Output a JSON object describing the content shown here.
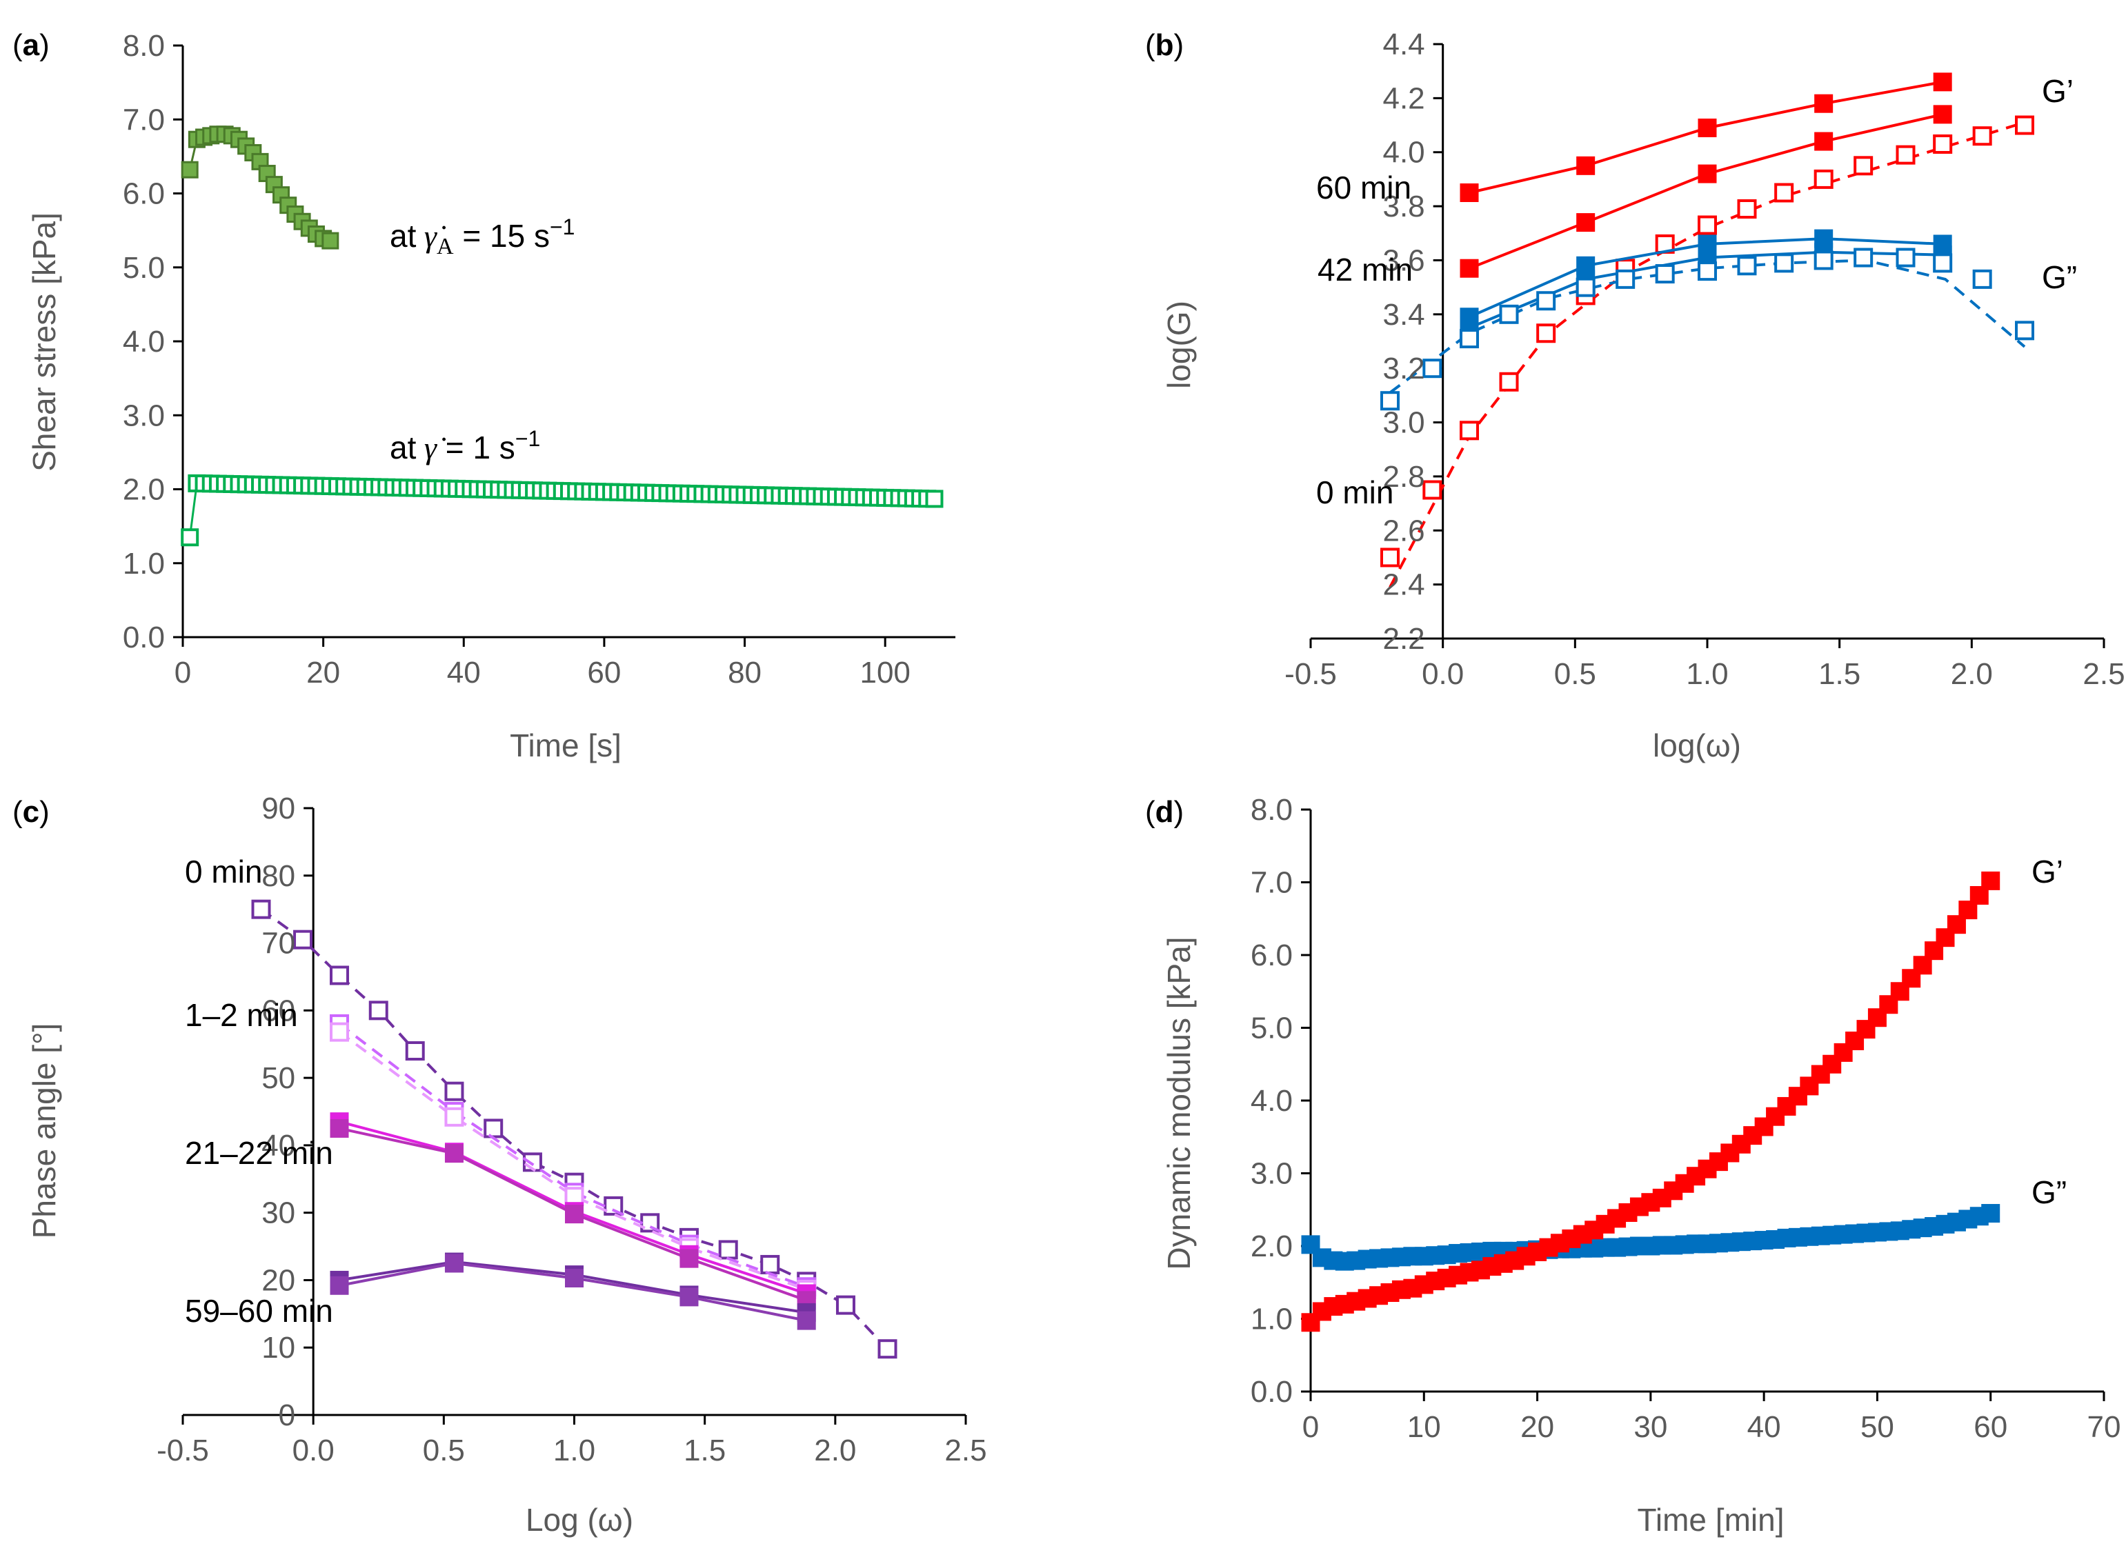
{
  "chart_data": [
    {
      "type": "scatter",
      "panel": "(a)",
      "panel_letter": "a",
      "xlabel": "Time [s]",
      "ylabel": "Shear stress [kPa]",
      "xlim": [
        0,
        110
      ],
      "ylim": [
        0,
        8
      ],
      "xticks": [
        0,
        20,
        40,
        60,
        80,
        100
      ],
      "yticks": [
        0,
        1,
        2,
        3,
        4,
        5,
        6,
        7,
        8
      ],
      "xtick_labels": [
        "0",
        "20",
        "40",
        "60",
        "80",
        "100"
      ],
      "ytick_labels": [
        "0.0",
        "1.0",
        "2.0",
        "3.0",
        "4.0",
        "5.0",
        "6.0",
        "7.0",
        "8.0"
      ],
      "series": [
        {
          "name": "at γ̇A = 15 s−1",
          "color": "#4a7a2a",
          "fill": "#70ad47",
          "marker": "filled-square",
          "x": [
            1,
            2,
            3,
            4,
            5,
            6,
            7,
            8,
            9,
            10,
            11,
            12,
            13,
            14,
            15,
            16,
            17,
            18,
            19,
            20,
            21
          ],
          "y": [
            6.32,
            6.73,
            6.76,
            6.78,
            6.8,
            6.8,
            6.78,
            6.73,
            6.64,
            6.55,
            6.43,
            6.27,
            6.12,
            5.98,
            5.84,
            5.72,
            5.62,
            5.53,
            5.45,
            5.39,
            5.36
          ]
        },
        {
          "name": "at γ̇ = 1 s−1",
          "color": "#00b050",
          "marker": "open-square",
          "x": [
            1,
            2,
            107
          ],
          "y": [
            1.35,
            2.08,
            1.87
          ],
          "dense_range": [
            2,
            107
          ],
          "step": 1
        }
      ],
      "annotations": {
        "upper_prefix": "at",
        "upper_symbol": "γ̇",
        "upper_subscript": "A",
        "upper_value": "= 15 s",
        "upper_exponent": "−1",
        "lower_prefix": "at",
        "lower_symbol": "γ̇",
        "lower_value": "= 1 s",
        "lower_exponent": "−1"
      }
    },
    {
      "type": "line",
      "panel": "(b)",
      "panel_letter": "b",
      "xlabel": "log(ω)",
      "ylabel": "log(G)",
      "xlim": [
        -0.5,
        2.5
      ],
      "ylim": [
        2.2,
        4.4
      ],
      "xticks": [
        -0.5,
        0,
        0.5,
        1,
        1.5,
        2,
        2.5
      ],
      "yticks": [
        2.2,
        2.4,
        2.6,
        2.8,
        3.0,
        3.2,
        3.4,
        3.6,
        3.8,
        4.0,
        4.2,
        4.4
      ],
      "xtick_labels": [
        "-0.5",
        "0.0",
        "0.5",
        "1.0",
        "1.5",
        "2.0",
        "2.5"
      ],
      "ytick_labels": [
        "2.2",
        "2.4",
        "2.6",
        "2.8",
        "3.0",
        "3.2",
        "3.4",
        "3.6",
        "3.8",
        "4.0",
        "4.2",
        "4.4"
      ],
      "series": [
        {
          "name": "G' 60 min",
          "color": "#ff0000",
          "marker": "filled-square",
          "line": "solid",
          "x": [
            0.1,
            0.54,
            1.0,
            1.44,
            1.89
          ],
          "y": [
            3.85,
            3.95,
            4.09,
            4.18,
            4.26
          ]
        },
        {
          "name": "G' 42 min",
          "color": "#ff0000",
          "marker": "filled-square",
          "line": "solid",
          "x": [
            0.1,
            0.54,
            1.0,
            1.44,
            1.89
          ],
          "y": [
            3.57,
            3.74,
            3.92,
            4.04,
            4.14
          ]
        },
        {
          "name": "G' 0 min",
          "color": "#ff0000",
          "marker": "open-square",
          "line": "dashed",
          "x": [
            -0.2,
            -0.04,
            0.1,
            0.25,
            0.39,
            0.54,
            0.69,
            0.84,
            1.0,
            1.15,
            1.29,
            1.44,
            1.59,
            1.75,
            1.89,
            2.04,
            2.2
          ],
          "y": [
            2.5,
            2.75,
            2.97,
            3.15,
            3.33,
            3.47,
            3.57,
            3.66,
            3.73,
            3.79,
            3.85,
            3.9,
            3.95,
            3.99,
            4.03,
            4.06,
            4.1
          ],
          "trend_x": [
            -0.2,
            0.1,
            0.4,
            0.7,
            1.0,
            1.3,
            1.6,
            1.9,
            2.2
          ],
          "trend_y": [
            2.39,
            2.95,
            3.33,
            3.56,
            3.72,
            3.84,
            3.93,
            4.02,
            4.11
          ]
        },
        {
          "name": "G'' 60 min",
          "color": "#0070c0",
          "marker": "filled-square",
          "line": "solid",
          "x": [
            0.1,
            0.54,
            1.0,
            1.44,
            1.89
          ],
          "y": [
            3.39,
            3.58,
            3.66,
            3.68,
            3.66
          ]
        },
        {
          "name": "G'' 42 min",
          "color": "#0070c0",
          "marker": "filled-square",
          "line": "solid",
          "x": [
            0.1,
            0.54,
            1.0,
            1.44,
            1.89
          ],
          "y": [
            3.35,
            3.53,
            3.61,
            3.63,
            3.62
          ]
        },
        {
          "name": "G'' 0 min",
          "color": "#0070c0",
          "marker": "open-square",
          "line": "dashed",
          "x": [
            -0.2,
            -0.04,
            0.1,
            0.25,
            0.39,
            0.54,
            0.69,
            0.84,
            1.0,
            1.15,
            1.29,
            1.44,
            1.59,
            1.75,
            1.89,
            2.04,
            2.2
          ],
          "y": [
            3.08,
            3.2,
            3.31,
            3.4,
            3.45,
            3.5,
            3.53,
            3.55,
            3.56,
            3.58,
            3.59,
            3.6,
            3.61,
            3.61,
            3.59,
            3.53,
            3.34
          ],
          "trend_x": [
            -0.2,
            0.1,
            0.4,
            0.7,
            1.0,
            1.3,
            1.6,
            1.9,
            2.2
          ],
          "trend_y": [
            3.11,
            3.33,
            3.46,
            3.53,
            3.57,
            3.59,
            3.6,
            3.53,
            3.28
          ]
        }
      ],
      "annotations": {
        "g_prime": "G’",
        "g_double_prime": "G”",
        "t60": "60 min",
        "t42": "42 min",
        "t0": "0 min"
      }
    },
    {
      "type": "line",
      "panel": "(c)",
      "panel_letter": "c",
      "xlabel": "Log (ω)",
      "ylabel": "Phase angle [°]",
      "xlim": [
        -0.5,
        2.5
      ],
      "ylim": [
        0,
        90
      ],
      "xticks": [
        -0.5,
        0,
        0.5,
        1,
        1.5,
        2,
        2.5
      ],
      "yticks": [
        0,
        10,
        20,
        30,
        40,
        50,
        60,
        70,
        80,
        90
      ],
      "xtick_labels": [
        "-0.5",
        "0.0",
        "0.5",
        "1.0",
        "1.5",
        "2.0",
        "2.5"
      ],
      "ytick_labels": [
        "0",
        "10",
        "20",
        "30",
        "40",
        "50",
        "60",
        "70",
        "80",
        "90"
      ],
      "series": [
        {
          "name": "0 min",
          "color": "#7030a0",
          "marker": "open-square",
          "line": "dashed",
          "x": [
            -0.2,
            -0.04,
            0.1,
            0.25,
            0.39,
            0.54,
            0.69,
            0.84,
            1.0,
            1.15,
            1.29,
            1.44,
            1.59,
            1.75,
            1.89,
            2.04,
            2.2
          ],
          "y": [
            75,
            70.5,
            65.2,
            60,
            54,
            48,
            42.5,
            37.5,
            34.5,
            31,
            28.5,
            26.3,
            24.5,
            22.3,
            19.8,
            16.3,
            9.8
          ]
        },
        {
          "name": "1 min",
          "color": "#cc66ff",
          "marker": "open-square",
          "line": "dashed",
          "x": [
            0.1,
            0.54,
            1.0,
            1.44,
            1.89
          ],
          "y": [
            58,
            45,
            33,
            25.3,
            19
          ]
        },
        {
          "name": "2 min",
          "color": "#e899ff",
          "marker": "open-square",
          "line": "dashed",
          "x": [
            0.1,
            0.54,
            1.0,
            1.44,
            1.89
          ],
          "y": [
            56.8,
            44.2,
            32.4,
            24.8,
            18.6
          ]
        },
        {
          "name": "21 min",
          "color": "#e020e0",
          "marker": "filled-square",
          "line": "solid",
          "x": [
            0.1,
            0.54,
            1.0,
            1.44,
            1.89
          ],
          "y": [
            43.5,
            39,
            30.2,
            23.8,
            18
          ]
        },
        {
          "name": "22 min",
          "color": "#b830b8",
          "marker": "filled-square",
          "line": "solid",
          "x": [
            0.1,
            0.54,
            1.0,
            1.44,
            1.89
          ],
          "y": [
            42.5,
            38.8,
            29.8,
            23.2,
            17
          ]
        },
        {
          "name": "59 min",
          "color": "#7030a0",
          "marker": "filled-square",
          "line": "solid",
          "x": [
            0.1,
            0.54,
            1.0,
            1.44,
            1.89
          ],
          "y": [
            20,
            22.7,
            20.8,
            17.8,
            15.2
          ]
        },
        {
          "name": "60 min",
          "color": "#8b3cb0",
          "marker": "filled-square",
          "line": "solid",
          "x": [
            0.1,
            0.54,
            1.0,
            1.44,
            1.89
          ],
          "y": [
            19.2,
            22.5,
            20.3,
            17.5,
            14
          ]
        }
      ],
      "annotations": {
        "t0": "0 min",
        "t1_2": "1–2 min",
        "t21_22": "21–22 min",
        "t59_60": "59–60 min"
      }
    },
    {
      "type": "scatter",
      "panel": "(d)",
      "panel_letter": "d",
      "xlabel": "Time [min]",
      "ylabel": "Dynamic modulus [kPa]",
      "xlim": [
        0,
        70
      ],
      "ylim": [
        0,
        8
      ],
      "xticks": [
        0,
        10,
        20,
        30,
        40,
        50,
        60,
        70
      ],
      "yticks": [
        0,
        1,
        2,
        3,
        4,
        5,
        6,
        7,
        8
      ],
      "xtick_labels": [
        "0",
        "10",
        "20",
        "30",
        "40",
        "50",
        "60",
        "70"
      ],
      "ytick_labels": [
        "0.0",
        "1.0",
        "2.0",
        "3.0",
        "4.0",
        "5.0",
        "6.0",
        "7.0",
        "8.0"
      ],
      "series": [
        {
          "name": "G’",
          "color": "#ff0000",
          "marker": "filled-square",
          "x": [
            0,
            1,
            2,
            3,
            4,
            5,
            6,
            7,
            8,
            9,
            10,
            11,
            12,
            13,
            14,
            15,
            16,
            17,
            18,
            19,
            20,
            21,
            22,
            23,
            24,
            25,
            26,
            27,
            28,
            29,
            30,
            31,
            32,
            33,
            34,
            35,
            36,
            37,
            38,
            39,
            40,
            41,
            42,
            43,
            44,
            45,
            46,
            47,
            48,
            49,
            50,
            51,
            52,
            53,
            54,
            55,
            56,
            57,
            58,
            59,
            60
          ],
          "y": [
            0.95,
            1.1,
            1.17,
            1.2,
            1.24,
            1.28,
            1.32,
            1.36,
            1.4,
            1.42,
            1.47,
            1.52,
            1.56,
            1.6,
            1.64,
            1.67,
            1.72,
            1.76,
            1.8,
            1.86,
            1.92,
            1.98,
            2.04,
            2.1,
            2.16,
            2.22,
            2.3,
            2.38,
            2.46,
            2.54,
            2.6,
            2.66,
            2.76,
            2.86,
            2.96,
            3.06,
            3.16,
            3.28,
            3.4,
            3.52,
            3.64,
            3.78,
            3.92,
            4.06,
            4.2,
            4.36,
            4.5,
            4.66,
            4.82,
            4.98,
            5.14,
            5.32,
            5.5,
            5.68,
            5.86,
            6.06,
            6.24,
            6.42,
            6.62,
            6.82,
            7.02
          ]
        },
        {
          "name": "G”",
          "color": "#0070c0",
          "marker": "filled-square",
          "x": [
            0,
            1,
            2,
            3,
            4,
            5,
            6,
            7,
            8,
            9,
            10,
            11,
            12,
            13,
            14,
            15,
            16,
            17,
            18,
            19,
            20,
            21,
            22,
            23,
            24,
            25,
            26,
            27,
            28,
            29,
            30,
            31,
            32,
            33,
            34,
            35,
            36,
            37,
            38,
            39,
            40,
            41,
            42,
            43,
            44,
            45,
            46,
            47,
            48,
            49,
            50,
            51,
            52,
            53,
            54,
            55,
            56,
            57,
            58,
            59,
            60
          ],
          "y": [
            2.02,
            1.84,
            1.8,
            1.79,
            1.8,
            1.82,
            1.83,
            1.84,
            1.85,
            1.86,
            1.86,
            1.87,
            1.88,
            1.9,
            1.91,
            1.92,
            1.93,
            1.93,
            1.93,
            1.94,
            1.95,
            1.95,
            1.96,
            1.96,
            1.97,
            1.97,
            1.98,
            1.98,
            1.99,
            2.0,
            2.0,
            2.01,
            2.01,
            2.02,
            2.03,
            2.03,
            2.04,
            2.05,
            2.06,
            2.07,
            2.08,
            2.09,
            2.11,
            2.12,
            2.13,
            2.14,
            2.15,
            2.16,
            2.17,
            2.18,
            2.19,
            2.2,
            2.21,
            2.23,
            2.25,
            2.27,
            2.3,
            2.33,
            2.37,
            2.41,
            2.45
          ]
        }
      ],
      "annotations": {
        "g_prime": "G’",
        "g_double_prime": "G”"
      }
    }
  ]
}
